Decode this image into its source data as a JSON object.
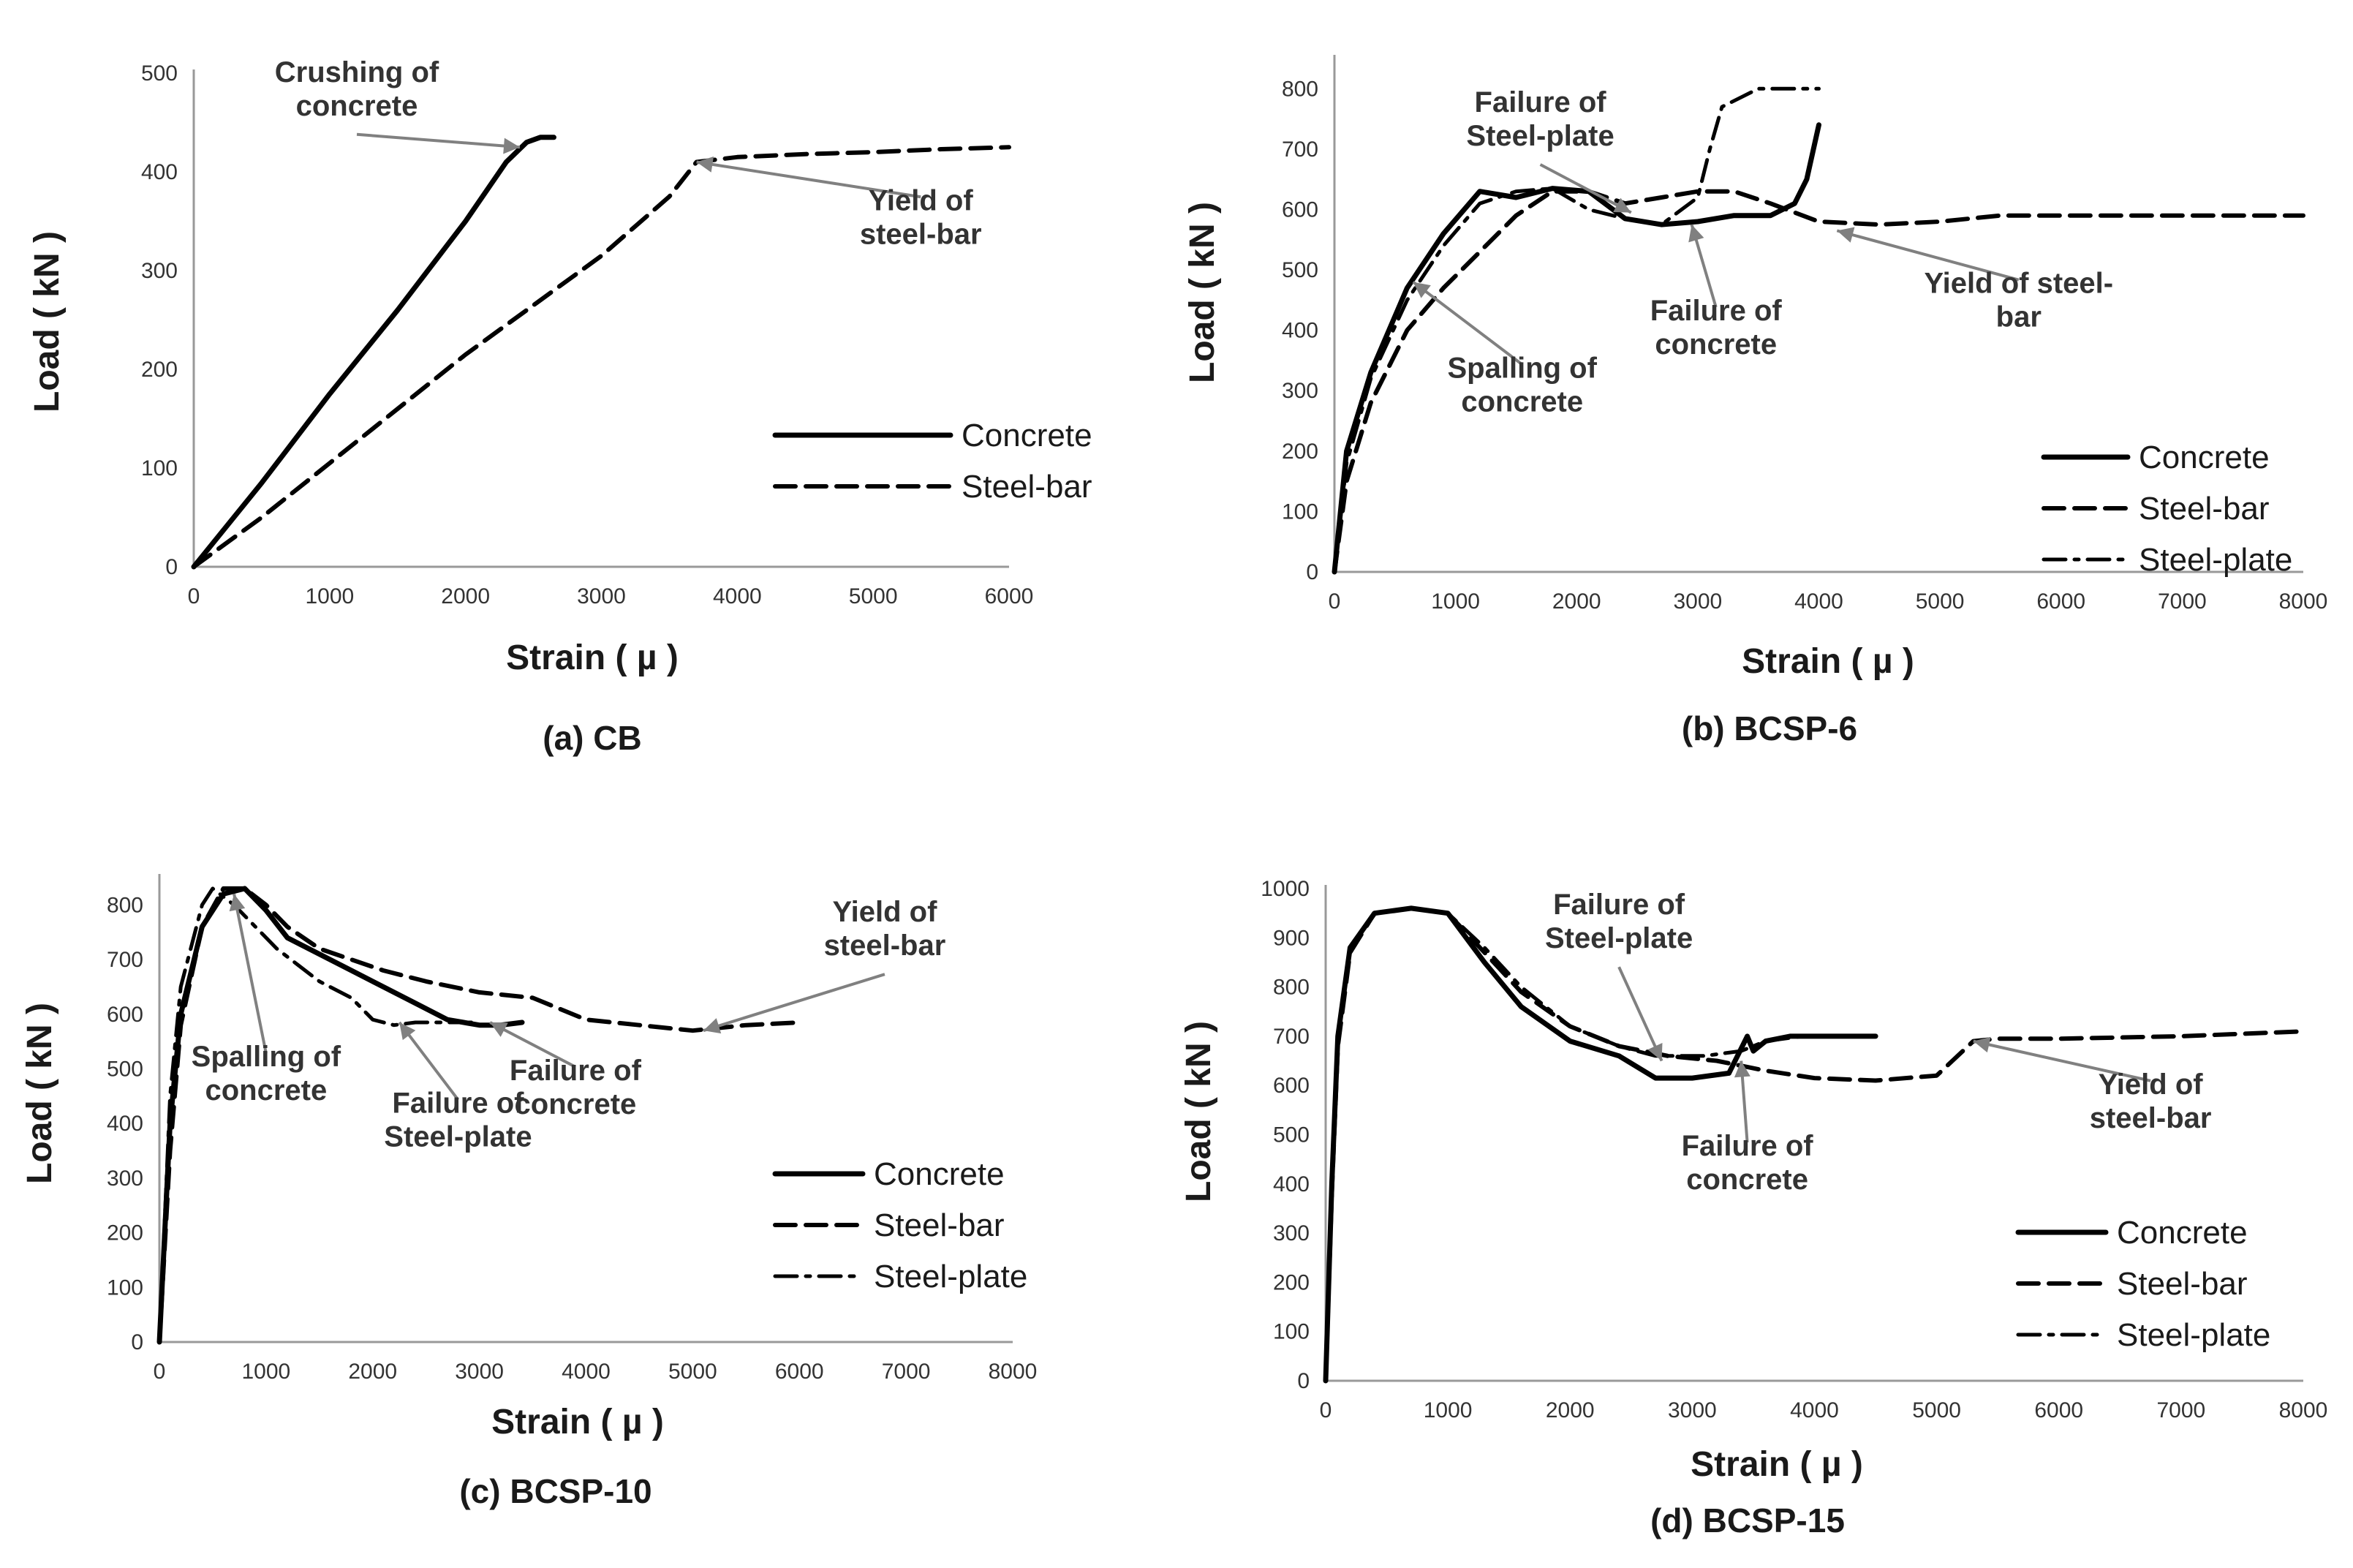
{
  "chart_data": [
    {
      "type": "line",
      "caption": "(a) CB",
      "xlabel": "Strain ( µ )",
      "ylabel": "Load ( kN )",
      "xlim": [
        0,
        6000
      ],
      "ylim": [
        0,
        500
      ],
      "xticks": [
        0,
        1000,
        2000,
        3000,
        4000,
        5000,
        6000
      ],
      "yticks": [
        0,
        100,
        200,
        300,
        400,
        500
      ],
      "legend": "bottom-right",
      "series": [
        {
          "name": "Concrete",
          "style": "solid",
          "x": [
            0,
            500,
            1000,
            1500,
            2000,
            2300,
            2450,
            2550,
            2650
          ],
          "y": [
            0,
            85,
            175,
            260,
            350,
            410,
            430,
            435,
            435
          ]
        },
        {
          "name": "Steel-bar",
          "style": "dashed",
          "x": [
            0,
            500,
            1000,
            1500,
            2000,
            2500,
            3000,
            3500,
            3700,
            4000,
            4500,
            5000,
            5500,
            6000
          ],
          "y": [
            0,
            50,
            105,
            160,
            215,
            265,
            315,
            375,
            410,
            415,
            418,
            420,
            423,
            425
          ]
        }
      ],
      "annotations": [
        {
          "lines": [
            "Crushing of",
            "concrete"
          ],
          "point": [
            2400,
            425
          ],
          "text_at": [
            1200,
            475
          ]
        },
        {
          "lines": [
            "Yield of",
            "steel-bar"
          ],
          "point": [
            3700,
            410
          ],
          "text_at": [
            5350,
            345
          ]
        }
      ]
    },
    {
      "type": "line",
      "caption": "(b) BCSP-6",
      "xlabel": "Strain ( µ )",
      "ylabel": "Load ( kN )",
      "xlim": [
        0,
        8000
      ],
      "ylim": [
        0,
        850
      ],
      "xticks": [
        0,
        1000,
        2000,
        3000,
        4000,
        5000,
        6000,
        7000,
        8000
      ],
      "yticks": [
        0,
        100,
        200,
        300,
        400,
        500,
        600,
        700,
        800
      ],
      "legend": "bottom-right",
      "series": [
        {
          "name": "Concrete",
          "style": "solid",
          "x": [
            0,
            100,
            300,
            600,
            900,
            1200,
            1500,
            1800,
            2100,
            2400,
            2700,
            3000,
            3300,
            3600,
            3800,
            3900,
            4000
          ],
          "y": [
            0,
            200,
            330,
            470,
            560,
            630,
            620,
            635,
            630,
            585,
            575,
            580,
            590,
            590,
            610,
            650,
            740
          ]
        },
        {
          "name": "Steel-bar",
          "style": "dashed",
          "x": [
            0,
            100,
            300,
            600,
            900,
            1200,
            1500,
            1800,
            2100,
            2400,
            2700,
            3000,
            3300,
            3600,
            4000,
            4500,
            5000,
            5500,
            6000,
            7000,
            8000
          ],
          "y": [
            0,
            150,
            280,
            400,
            470,
            530,
            590,
            630,
            630,
            610,
            620,
            630,
            630,
            610,
            580,
            575,
            580,
            590,
            590,
            590,
            590
          ]
        },
        {
          "name": "Steel-plate",
          "style": "dashdot",
          "x": [
            0,
            100,
            300,
            600,
            900,
            1200,
            1500,
            1800,
            2100,
            2400,
            2700,
            3000,
            3100,
            3200,
            3500,
            3800,
            4000
          ],
          "y": [
            0,
            180,
            320,
            450,
            540,
            610,
            630,
            635,
            600,
            585,
            575,
            620,
            700,
            770,
            800,
            800,
            800
          ]
        }
      ],
      "annotations": [
        {
          "lines": [
            "Failure of",
            "Steel-plate"
          ],
          "point": [
            2450,
            595
          ],
          "text_at": [
            1700,
            735
          ]
        },
        {
          "lines": [
            "Failure of",
            "concrete"
          ],
          "point": [
            2950,
            575
          ],
          "text_at": [
            3150,
            390
          ]
        },
        {
          "lines": [
            "Spalling of",
            "concrete"
          ],
          "point": [
            650,
            480
          ],
          "text_at": [
            1550,
            295
          ]
        },
        {
          "lines": [
            "Yield of steel-",
            "bar"
          ],
          "point": [
            4150,
            565
          ],
          "text_at": [
            5650,
            435
          ]
        }
      ]
    },
    {
      "type": "line",
      "caption": "(c) BCSP-10",
      "xlabel": "Strain ( µ )",
      "ylabel": "Load ( kN )",
      "xlim": [
        0,
        8000
      ],
      "ylim": [
        0,
        850
      ],
      "xticks": [
        0,
        1000,
        2000,
        3000,
        4000,
        5000,
        6000,
        7000,
        8000
      ],
      "yticks": [
        0,
        100,
        200,
        300,
        400,
        500,
        600,
        700,
        800
      ],
      "legend": "bottom-right",
      "series": [
        {
          "name": "Concrete",
          "style": "solid",
          "x": [
            0,
            100,
            200,
            400,
            600,
            800,
            1000,
            1200,
            1500,
            1800,
            2100,
            2400,
            2700,
            3000,
            3200,
            3400
          ],
          "y": [
            0,
            400,
            600,
            760,
            820,
            830,
            790,
            740,
            710,
            680,
            650,
            620,
            590,
            580,
            580,
            585
          ]
        },
        {
          "name": "Steel-bar",
          "style": "dashed",
          "x": [
            0,
            100,
            200,
            400,
            600,
            800,
            1000,
            1200,
            1500,
            1800,
            2100,
            2500,
            3000,
            3500,
            4000,
            4500,
            5000,
            5500,
            6000
          ],
          "y": [
            0,
            350,
            580,
            760,
            830,
            830,
            800,
            760,
            720,
            700,
            680,
            660,
            640,
            630,
            590,
            580,
            570,
            580,
            585
          ]
        },
        {
          "name": "Steel-plate",
          "style": "dashdot",
          "x": [
            0,
            100,
            200,
            400,
            500,
            700,
            900,
            1100,
            1300,
            1500,
            1800,
            2000,
            2200,
            2400,
            2700,
            3000
          ],
          "y": [
            0,
            450,
            650,
            800,
            830,
            800,
            760,
            720,
            690,
            660,
            630,
            590,
            580,
            585,
            585,
            585
          ]
        }
      ],
      "annotations": [
        {
          "lines": [
            "Spalling of",
            "concrete"
          ],
          "point": [
            700,
            820
          ],
          "text_at": [
            1000,
            475
          ]
        },
        {
          "lines": [
            "Failure of",
            "Steel-plate"
          ],
          "point": [
            2250,
            585
          ],
          "text_at": [
            2800,
            390
          ]
        },
        {
          "lines": [
            "Failure of",
            "concrete"
          ],
          "point": [
            3100,
            585
          ],
          "text_at": [
            3900,
            450
          ]
        },
        {
          "lines": [
            "Yield of",
            "steel-bar"
          ],
          "point": [
            5100,
            570
          ],
          "text_at": [
            6800,
            740
          ]
        }
      ]
    },
    {
      "type": "line",
      "caption": "(d) BCSP-15",
      "xlabel": "Strain ( µ )",
      "ylabel": "Load ( kN )",
      "xlim": [
        0,
        8000
      ],
      "ylim": [
        0,
        1000
      ],
      "xticks": [
        0,
        1000,
        2000,
        3000,
        4000,
        5000,
        6000,
        7000,
        8000
      ],
      "yticks": [
        0,
        100,
        200,
        300,
        400,
        500,
        600,
        700,
        800,
        900,
        1000
      ],
      "legend": "bottom-right",
      "series": [
        {
          "name": "Concrete",
          "style": "solid",
          "x": [
            0,
            50,
            100,
            200,
            400,
            700,
            1000,
            1300,
            1600,
            2000,
            2400,
            2700,
            3000,
            3300,
            3450,
            3500,
            3600,
            3800,
            4000,
            4500
          ],
          "y": [
            0,
            400,
            700,
            880,
            950,
            960,
            950,
            850,
            760,
            690,
            660,
            615,
            615,
            625,
            700,
            670,
            690,
            700,
            700,
            700
          ]
        },
        {
          "name": "Steel-bar",
          "style": "dashed",
          "x": [
            0,
            50,
            100,
            200,
            400,
            700,
            1000,
            1300,
            1600,
            2000,
            2400,
            2800,
            3200,
            3600,
            4000,
            4500,
            5000,
            5300,
            5500,
            6000,
            7000,
            8000
          ],
          "y": [
            0,
            380,
            680,
            870,
            950,
            960,
            950,
            870,
            790,
            720,
            680,
            660,
            650,
            630,
            615,
            610,
            620,
            690,
            695,
            695,
            700,
            710
          ]
        },
        {
          "name": "Steel-plate",
          "style": "dashdot",
          "x": [
            0,
            50,
            100,
            200,
            400,
            700,
            1000,
            1300,
            1600,
            2000,
            2400,
            2700,
            3100,
            3400,
            3600,
            3900,
            4200
          ],
          "y": [
            0,
            400,
            700,
            880,
            950,
            960,
            950,
            880,
            800,
            720,
            680,
            660,
            660,
            670,
            690,
            700,
            700
          ]
        }
      ],
      "annotations": [
        {
          "lines": [
            "Failure of",
            "Steel-plate"
          ],
          "point": [
            2750,
            650
          ],
          "text_at": [
            2400,
            915
          ]
        },
        {
          "lines": [
            "Failure of",
            "concrete"
          ],
          "point": [
            3400,
            650
          ],
          "text_at": [
            3450,
            425
          ]
        },
        {
          "lines": [
            "Yield of",
            "steel-bar"
          ],
          "point": [
            5300,
            690
          ],
          "text_at": [
            6750,
            550
          ]
        }
      ]
    }
  ]
}
